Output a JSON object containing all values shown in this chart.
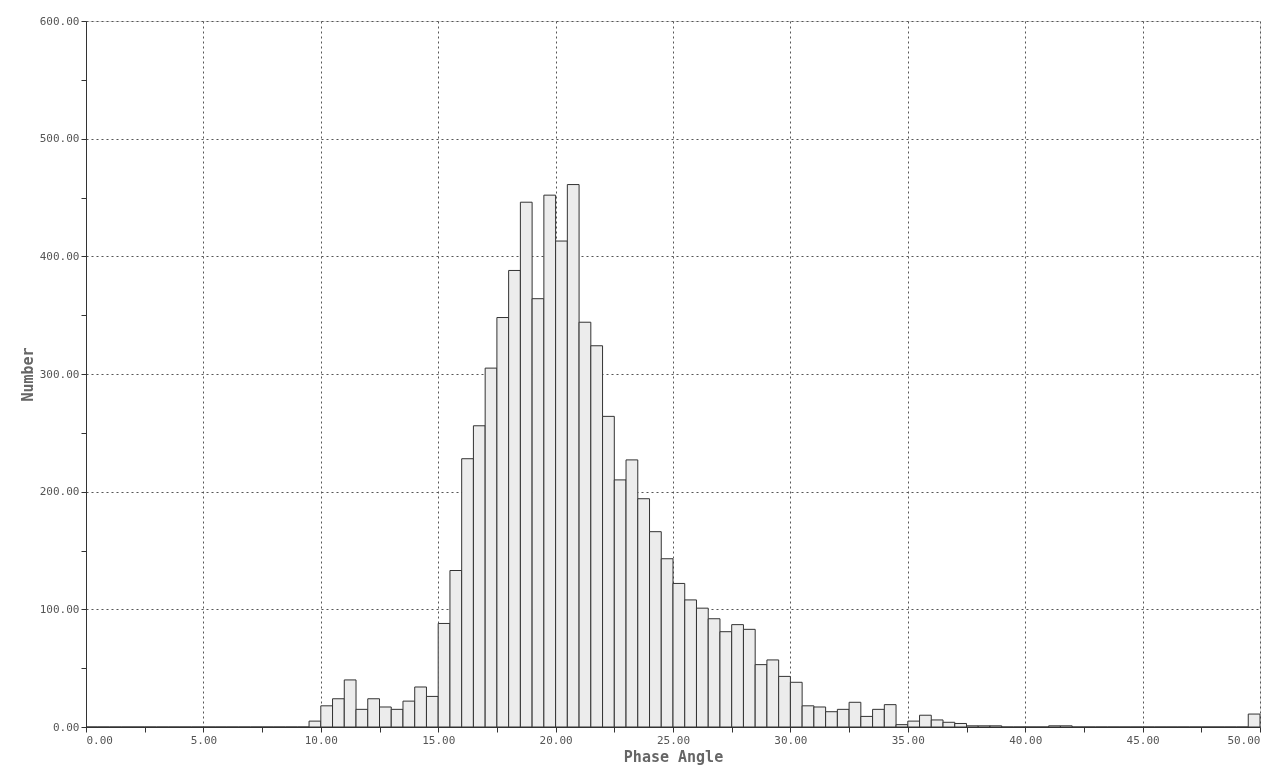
{
  "chart_data": {
    "type": "histogram",
    "xlabel": "Phase Angle",
    "ylabel": "Number",
    "bins": [
      0,
      0.5,
      1,
      1.5,
      2,
      2.5,
      3,
      3.5,
      4,
      4.5,
      5,
      5.5,
      6,
      6.5,
      7,
      7.5,
      8,
      8.5,
      9,
      9.5,
      10,
      10.5,
      11,
      11.5,
      12,
      12.5,
      13,
      13.5,
      14,
      14.5,
      15,
      15.5,
      16,
      16.5,
      17,
      17.5,
      18,
      18.5,
      19,
      19.5,
      20,
      20.5,
      21,
      21.5,
      22,
      22.5,
      23,
      23.5,
      24,
      24.5,
      25,
      25.5,
      26,
      26.5,
      27,
      27.5,
      28,
      28.5,
      29,
      29.5,
      30,
      30.5,
      31,
      31.5,
      32,
      32.5,
      33,
      33.5,
      34,
      34.5,
      35,
      35.5,
      36,
      36.5,
      37,
      37.5,
      38,
      38.5,
      39,
      39.5,
      40,
      40.5,
      41,
      41.5,
      42,
      42.5,
      43,
      43.5,
      44,
      44.5,
      45,
      45.5,
      46,
      46.5,
      47,
      47.5,
      48,
      48.5,
      49,
      49.5,
      50
    ],
    "values": [
      0,
      0,
      0,
      0,
      0,
      0,
      0,
      0,
      0,
      0,
      0,
      0,
      0,
      0,
      0,
      0,
      0,
      0,
      0,
      5,
      18,
      24,
      40,
      15,
      24,
      17,
      15,
      22,
      34,
      26,
      88,
      133,
      228,
      256,
      305,
      348,
      388,
      446,
      364,
      452,
      413,
      461,
      344,
      324,
      264,
      210,
      227,
      194,
      166,
      143,
      122,
      108,
      101,
      92,
      81,
      87,
      83,
      53,
      57,
      43,
      38,
      18,
      17,
      13,
      15,
      21,
      9,
      15,
      19,
      2,
      5,
      10,
      6,
      4,
      3,
      1,
      1,
      1,
      0,
      0,
      0,
      0,
      1,
      1,
      0,
      0,
      0,
      0,
      0,
      0,
      0,
      0,
      0,
      0,
      0,
      0,
      0,
      0,
      0,
      11
    ],
    "color": "#ececec",
    "xlim": [
      0,
      50
    ],
    "ylim": [
      0,
      600
    ],
    "xticks": [
      {
        "value": 0,
        "label": "0.00"
      },
      {
        "value": 2.5,
        "label": null
      },
      {
        "value": 5,
        "label": "5.00"
      },
      {
        "value": 7.5,
        "label": null
      },
      {
        "value": 10,
        "label": "10.00"
      },
      {
        "value": 12.5,
        "label": null
      },
      {
        "value": 15,
        "label": "15.00"
      },
      {
        "value": 17.5,
        "label": null
      },
      {
        "value": 20,
        "label": "20.00"
      },
      {
        "value": 22.5,
        "label": null
      },
      {
        "value": 25,
        "label": "25.00"
      },
      {
        "value": 27.5,
        "label": null
      },
      {
        "value": 30,
        "label": "30.00"
      },
      {
        "value": 32.5,
        "label": null
      },
      {
        "value": 35,
        "label": "35.00"
      },
      {
        "value": 37.5,
        "label": null
      },
      {
        "value": 40,
        "label": "40.00"
      },
      {
        "value": 42.5,
        "label": null
      },
      {
        "value": 45,
        "label": "45.00"
      },
      {
        "value": 47.5,
        "label": null
      },
      {
        "value": 50,
        "label": "50.00"
      }
    ],
    "yticks": [
      {
        "value": 0,
        "label": "0.00"
      },
      {
        "value": 50,
        "label": null
      },
      {
        "value": 100,
        "label": "100.00"
      },
      {
        "value": 150,
        "label": null
      },
      {
        "value": 200,
        "label": "200.00"
      },
      {
        "value": 250,
        "label": null
      },
      {
        "value": 300,
        "label": "300.00"
      },
      {
        "value": 350,
        "label": null
      },
      {
        "value": 400,
        "label": "400.00"
      },
      {
        "value": 450,
        "label": null
      },
      {
        "value": 500,
        "label": "500.00"
      },
      {
        "value": 550,
        "label": null
      },
      {
        "value": 600,
        "label": "600.00"
      }
    ],
    "grid": true
  }
}
